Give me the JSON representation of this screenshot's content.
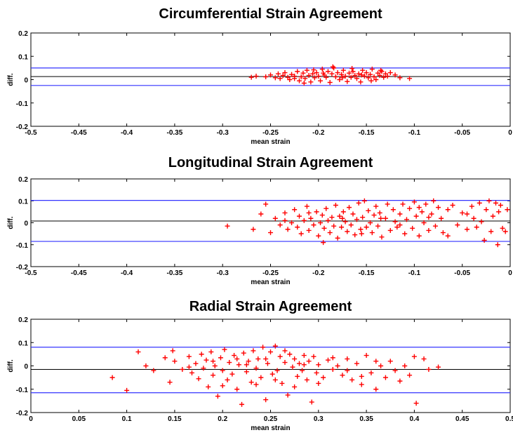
{
  "chart_data": [
    {
      "type": "scatter",
      "title": "Circumferential Strain Agreement",
      "xlabel": "mean strain",
      "ylabel": "diff.",
      "xlim": [
        -0.5,
        0
      ],
      "ylim": [
        -0.2,
        0.2
      ],
      "x_ticks": [
        -0.5,
        -0.45,
        -0.4,
        -0.35,
        -0.3,
        -0.25,
        -0.2,
        -0.15,
        -0.1,
        -0.05,
        0
      ],
      "x_tick_labels": [
        "-0.5",
        "-0.45",
        "-0.4",
        "-0.35",
        "-0.3",
        "-0.25",
        "-0.2",
        "-0.15",
        "-0.1",
        "-0.05",
        "0"
      ],
      "y_ticks": [
        0.2,
        0.1,
        0,
        -0.1,
        -0.2
      ],
      "y_tick_labels": [
        "0.2",
        "0.1",
        "0",
        "-0.1",
        "-0.2"
      ],
      "mean_line": 0.013,
      "limits_of_agreement": [
        0.05,
        -0.025
      ],
      "colors": {
        "points": "#ff0000",
        "limits": "#3333ff",
        "mean": "#000000"
      },
      "points": [
        [
          -0.27,
          0.01
        ],
        [
          -0.265,
          0.015
        ],
        [
          -0.255,
          0.012
        ],
        [
          -0.25,
          0.02
        ],
        [
          -0.245,
          0.008
        ],
        [
          -0.242,
          0.025
        ],
        [
          -0.24,
          0.005
        ],
        [
          -0.237,
          0.018
        ],
        [
          -0.235,
          0.03
        ],
        [
          -0.232,
          0.01
        ],
        [
          -0.23,
          0.0
        ],
        [
          -0.228,
          0.022
        ],
        [
          -0.225,
          0.015
        ],
        [
          -0.222,
          0.035
        ],
        [
          -0.22,
          -0.005
        ],
        [
          -0.218,
          0.012
        ],
        [
          -0.216,
          0.028
        ],
        [
          -0.214,
          0.005
        ],
        [
          -0.212,
          0.04
        ],
        [
          -0.21,
          0.018
        ],
        [
          -0.208,
          -0.01
        ],
        [
          -0.206,
          0.025
        ],
        [
          -0.204,
          0.008
        ],
        [
          -0.202,
          0.03
        ],
        [
          -0.2,
          0.015
        ],
        [
          -0.198,
          -0.005
        ],
        [
          -0.196,
          0.045
        ],
        [
          -0.194,
          0.02
        ],
        [
          -0.192,
          0.01
        ],
        [
          -0.19,
          0.035
        ],
        [
          -0.188,
          -0.012
        ],
        [
          -0.186,
          0.025
        ],
        [
          -0.184,
          0.05
        ],
        [
          -0.182,
          0.012
        ],
        [
          -0.18,
          0.03
        ],
        [
          -0.178,
          0.0
        ],
        [
          -0.176,
          0.022
        ],
        [
          -0.174,
          0.04
        ],
        [
          -0.172,
          0.015
        ],
        [
          -0.17,
          -0.008
        ],
        [
          -0.168,
          0.028
        ],
        [
          -0.166,
          0.01
        ],
        [
          -0.164,
          0.035
        ],
        [
          -0.162,
          0.018
        ],
        [
          -0.16,
          0.005
        ],
        [
          -0.158,
          0.025
        ],
        [
          -0.156,
          -0.01
        ],
        [
          -0.154,
          0.04
        ],
        [
          -0.152,
          0.015
        ],
        [
          -0.15,
          0.03
        ],
        [
          -0.148,
          0.008
        ],
        [
          -0.146,
          0.022
        ],
        [
          -0.144,
          0.045
        ],
        [
          -0.142,
          0.012
        ],
        [
          -0.14,
          0.0
        ],
        [
          -0.138,
          0.028
        ],
        [
          -0.136,
          0.018
        ],
        [
          -0.134,
          0.035
        ],
        [
          -0.132,
          0.01
        ],
        [
          -0.13,
          0.025
        ],
        [
          -0.128,
          0.015
        ],
        [
          -0.125,
          0.03
        ],
        [
          -0.12,
          0.02
        ],
        [
          -0.115,
          0.008
        ],
        [
          -0.105,
          0.005
        ],
        [
          -0.225,
          0.005
        ],
        [
          -0.215,
          -0.015
        ],
        [
          -0.205,
          0.042
        ],
        [
          -0.195,
          0.028
        ],
        [
          -0.185,
          0.055
        ],
        [
          -0.175,
          0.008
        ],
        [
          -0.165,
          0.048
        ],
        [
          -0.155,
          0.02
        ],
        [
          -0.145,
          -0.005
        ],
        [
          -0.135,
          0.04
        ]
      ]
    },
    {
      "type": "scatter",
      "title": "Longitudinal Strain Agreement",
      "xlabel": "mean strain",
      "ylabel": "diff.",
      "xlim": [
        -0.5,
        0
      ],
      "ylim": [
        -0.2,
        0.2
      ],
      "x_ticks": [
        -0.5,
        -0.45,
        -0.4,
        -0.35,
        -0.3,
        -0.25,
        -0.2,
        -0.15,
        -0.1,
        -0.05,
        0
      ],
      "x_tick_labels": [
        "-0.5",
        "-0.45",
        "-0.4",
        "-0.35",
        "-0.3",
        "-0.25",
        "-0.2",
        "-0.15",
        "-0.1",
        "-0.05",
        "0"
      ],
      "y_ticks": [
        0.2,
        0.1,
        0,
        -0.1,
        -0.2
      ],
      "y_tick_labels": [
        "0.2",
        "0.1",
        "0",
        "-0.1",
        "-0.2"
      ],
      "mean_line": 0.008,
      "limits_of_agreement": [
        0.102,
        -0.085
      ],
      "colors": {
        "points": "#ff0000",
        "limits": "#3333ff",
        "mean": "#000000"
      },
      "points": [
        [
          -0.295,
          -0.015
        ],
        [
          -0.268,
          -0.03
        ],
        [
          -0.26,
          0.04
        ],
        [
          -0.255,
          0.085
        ],
        [
          -0.25,
          -0.045
        ],
        [
          -0.245,
          0.02
        ],
        [
          -0.24,
          -0.01
        ],
        [
          -0.235,
          0.045
        ],
        [
          -0.232,
          -0.03
        ],
        [
          -0.228,
          0.0
        ],
        [
          -0.225,
          0.06
        ],
        [
          -0.222,
          -0.02
        ],
        [
          -0.22,
          0.03
        ],
        [
          -0.218,
          -0.05
        ],
        [
          -0.215,
          0.01
        ],
        [
          -0.212,
          0.075
        ],
        [
          -0.21,
          -0.035
        ],
        [
          -0.208,
          0.02
        ],
        [
          -0.205,
          -0.01
        ],
        [
          -0.202,
          0.05
        ],
        [
          -0.2,
          -0.06
        ],
        [
          -0.198,
          0.0
        ],
        [
          -0.196,
          0.035
        ],
        [
          -0.194,
          -0.025
        ],
        [
          -0.192,
          0.065
        ],
        [
          -0.19,
          0.01
        ],
        [
          -0.188,
          -0.045
        ],
        [
          -0.186,
          0.025
        ],
        [
          -0.184,
          -0.015
        ],
        [
          -0.182,
          0.08
        ],
        [
          -0.18,
          -0.07
        ],
        [
          -0.178,
          0.03
        ],
        [
          -0.176,
          -0.02
        ],
        [
          -0.174,
          0.05
        ],
        [
          -0.172,
          0.005
        ],
        [
          -0.17,
          -0.04
        ],
        [
          -0.168,
          0.07
        ],
        [
          -0.166,
          -0.01
        ],
        [
          -0.164,
          0.04
        ],
        [
          -0.162,
          -0.055
        ],
        [
          -0.16,
          0.015
        ],
        [
          -0.158,
          0.09
        ],
        [
          -0.156,
          -0.03
        ],
        [
          -0.154,
          0.025
        ],
        [
          -0.152,
          0.1
        ],
        [
          -0.15,
          -0.02
        ],
        [
          -0.148,
          0.055
        ],
        [
          -0.146,
          0.0
        ],
        [
          -0.144,
          -0.045
        ],
        [
          -0.142,
          0.035
        ],
        [
          -0.14,
          0.075
        ],
        [
          -0.138,
          -0.015
        ],
        [
          -0.136,
          0.045
        ],
        [
          -0.134,
          -0.065
        ],
        [
          -0.13,
          0.02
        ],
        [
          -0.128,
          0.085
        ],
        [
          -0.125,
          -0.035
        ],
        [
          -0.122,
          0.06
        ],
        [
          -0.12,
          0.005
        ],
        [
          -0.118,
          -0.02
        ],
        [
          -0.115,
          0.04
        ],
        [
          -0.112,
          0.085
        ],
        [
          -0.11,
          -0.05
        ],
        [
          -0.108,
          0.015
        ],
        [
          -0.105,
          0.065
        ],
        [
          -0.102,
          -0.025
        ],
        [
          -0.1,
          0.095
        ],
        [
          -0.098,
          0.03
        ],
        [
          -0.095,
          -0.06
        ],
        [
          -0.092,
          0.05
        ],
        [
          -0.09,
          0.0
        ],
        [
          -0.088,
          0.085
        ],
        [
          -0.085,
          -0.035
        ],
        [
          -0.082,
          0.04
        ],
        [
          -0.08,
          0.1
        ],
        [
          -0.078,
          -0.015
        ],
        [
          -0.075,
          0.07
        ],
        [
          -0.072,
          0.02
        ],
        [
          -0.07,
          -0.045
        ],
        [
          -0.065,
          0.06
        ],
        [
          -0.06,
          0.08
        ],
        [
          -0.055,
          -0.01
        ],
        [
          -0.05,
          0.045
        ],
        [
          -0.045,
          -0.03
        ],
        [
          -0.04,
          0.075
        ],
        [
          -0.038,
          0.02
        ],
        [
          -0.035,
          -0.02
        ],
        [
          -0.032,
          0.09
        ],
        [
          -0.03,
          0.005
        ],
        [
          -0.027,
          -0.08
        ],
        [
          -0.025,
          0.06
        ],
        [
          -0.022,
          0.1
        ],
        [
          -0.02,
          -0.04
        ],
        [
          -0.018,
          0.03
        ],
        [
          -0.015,
          0.09
        ],
        [
          -0.013,
          -0.1
        ],
        [
          -0.012,
          0.05
        ],
        [
          -0.01,
          0.08
        ],
        [
          -0.008,
          -0.025
        ],
        [
          -0.005,
          -0.04
        ],
        [
          -0.003,
          0.06
        ],
        [
          -0.235,
          0.01
        ],
        [
          -0.21,
          0.045
        ],
        [
          -0.195,
          -0.09
        ],
        [
          -0.175,
          0.02
        ],
        [
          -0.155,
          -0.05
        ],
        [
          -0.135,
          0.02
        ],
        [
          -0.115,
          -0.01
        ],
        [
          -0.095,
          0.07
        ],
        [
          -0.085,
          0.025
        ],
        [
          -0.065,
          -0.06
        ],
        [
          -0.045,
          0.04
        ]
      ]
    },
    {
      "type": "scatter",
      "title": "Radial Strain Agreement",
      "xlabel": "mean strain",
      "ylabel": "diff.",
      "xlim": [
        0,
        0.5
      ],
      "ylim": [
        -0.2,
        0.2
      ],
      "x_ticks": [
        0,
        0.05,
        0.1,
        0.15,
        0.2,
        0.25,
        0.3,
        0.35,
        0.4,
        0.45,
        0.5
      ],
      "x_tick_labels": [
        "0",
        "0.05",
        "0.1",
        "0.15",
        "0.2",
        "0.25",
        "0.3",
        "0.35",
        "0.4",
        "0.45",
        "0.5"
      ],
      "y_ticks": [
        0.2,
        0.1,
        0,
        -0.1,
        -0.2
      ],
      "y_tick_labels": [
        "0.2",
        "0.1",
        "0",
        "-0.1",
        "-0.2"
      ],
      "mean_line": -0.015,
      "limits_of_agreement": [
        0.08,
        -0.115
      ],
      "colors": {
        "points": "#ff0000",
        "limits": "#3333ff",
        "mean": "#000000"
      },
      "points": [
        [
          0.085,
          -0.05
        ],
        [
          0.1,
          -0.105
        ],
        [
          0.112,
          0.06
        ],
        [
          0.12,
          0.0
        ],
        [
          0.128,
          -0.02
        ],
        [
          0.14,
          0.035
        ],
        [
          0.145,
          -0.07
        ],
        [
          0.148,
          0.065
        ],
        [
          0.15,
          0.02
        ],
        [
          0.158,
          -0.015
        ],
        [
          0.165,
          0.04
        ],
        [
          0.168,
          -0.03
        ],
        [
          0.172,
          0.01
        ],
        [
          0.175,
          -0.055
        ],
        [
          0.178,
          0.05
        ],
        [
          0.18,
          -0.01
        ],
        [
          0.183,
          0.025
        ],
        [
          0.185,
          -0.09
        ],
        [
          0.188,
          0.06
        ],
        [
          0.19,
          -0.04
        ],
        [
          0.192,
          0.0
        ],
        [
          0.195,
          -0.13
        ],
        [
          0.198,
          0.035
        ],
        [
          0.2,
          -0.02
        ],
        [
          0.202,
          0.07
        ],
        [
          0.205,
          -0.06
        ],
        [
          0.207,
          0.015
        ],
        [
          0.21,
          -0.035
        ],
        [
          0.212,
          0.045
        ],
        [
          0.215,
          -0.1
        ],
        [
          0.217,
          0.005
        ],
        [
          0.22,
          -0.165
        ],
        [
          0.222,
          0.055
        ],
        [
          0.225,
          -0.025
        ],
        [
          0.227,
          0.02
        ],
        [
          0.23,
          -0.07
        ],
        [
          0.232,
          0.065
        ],
        [
          0.235,
          -0.01
        ],
        [
          0.237,
          0.03
        ],
        [
          0.24,
          -0.05
        ],
        [
          0.242,
          0.08
        ],
        [
          0.245,
          -0.145
        ],
        [
          0.247,
          0.01
        ],
        [
          0.25,
          0.06
        ],
        [
          0.252,
          -0.035
        ],
        [
          0.255,
          0.085
        ],
        [
          0.257,
          -0.02
        ],
        [
          0.26,
          0.04
        ],
        [
          0.262,
          -0.075
        ],
        [
          0.265,
          0.015
        ],
        [
          0.268,
          -0.125
        ],
        [
          0.27,
          0.05
        ],
        [
          0.273,
          -0.005
        ],
        [
          0.275,
          0.03
        ],
        [
          0.278,
          -0.045
        ],
        [
          0.28,
          0.01
        ],
        [
          0.283,
          -0.02
        ],
        [
          0.285,
          0.045
        ],
        [
          0.288,
          -0.06
        ],
        [
          0.29,
          0.02
        ],
        [
          0.293,
          -0.155
        ],
        [
          0.295,
          0.04
        ],
        [
          0.298,
          -0.03
        ],
        [
          0.3,
          0.005
        ],
        [
          0.305,
          -0.05
        ],
        [
          0.31,
          0.025
        ],
        [
          0.315,
          -0.015
        ],
        [
          0.32,
          0.0
        ],
        [
          0.325,
          -0.04
        ],
        [
          0.33,
          0.03
        ],
        [
          0.335,
          -0.06
        ],
        [
          0.34,
          0.01
        ],
        [
          0.345,
          -0.08
        ],
        [
          0.35,
          0.045
        ],
        [
          0.355,
          -0.03
        ],
        [
          0.36,
          -0.1
        ],
        [
          0.365,
          0.0
        ],
        [
          0.37,
          -0.05
        ],
        [
          0.375,
          0.02
        ],
        [
          0.38,
          -0.02
        ],
        [
          0.39,
          0.0
        ],
        [
          0.4,
          0.04
        ],
        [
          0.402,
          -0.16
        ],
        [
          0.41,
          0.03
        ],
        [
          0.415,
          -0.015
        ],
        [
          0.425,
          -0.005
        ],
        [
          0.165,
          -0.005
        ],
        [
          0.19,
          0.02
        ],
        [
          0.2,
          -0.085
        ],
        [
          0.215,
          0.03
        ],
        [
          0.225,
          0.005
        ],
        [
          0.235,
          -0.08
        ],
        [
          0.245,
          0.03
        ],
        [
          0.255,
          -0.06
        ],
        [
          0.265,
          0.065
        ],
        [
          0.275,
          -0.09
        ],
        [
          0.285,
          0.005
        ],
        [
          0.3,
          -0.075
        ],
        [
          0.315,
          0.035
        ],
        [
          0.33,
          -0.02
        ],
        [
          0.345,
          -0.045
        ],
        [
          0.36,
          0.02
        ],
        [
          0.385,
          -0.065
        ],
        [
          0.395,
          -0.04
        ]
      ]
    }
  ]
}
